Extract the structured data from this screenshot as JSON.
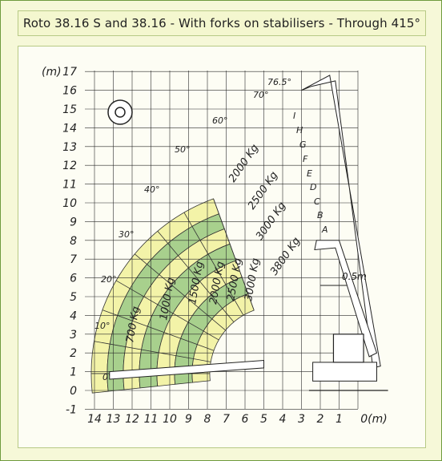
{
  "title": "Roto 38.16 S and 38.16 - With forks on stabilisers - Through 415°",
  "axes": {
    "y_unit": "(m)",
    "x_unit": "0(m)",
    "y_ticks": [
      "17",
      "16",
      "15",
      "14",
      "13",
      "12",
      "11",
      "10",
      "9",
      "8",
      "7",
      "6",
      "5",
      "4",
      "3",
      "2",
      "1",
      "0",
      "-1"
    ],
    "x_ticks": [
      "14",
      "13",
      "12",
      "11",
      "10",
      "9",
      "8",
      "7",
      "6",
      "5",
      "4",
      "3",
      "2",
      "1"
    ]
  },
  "angles": [
    "0°",
    "10°",
    "20°",
    "30°",
    "40°",
    "50°",
    "60°",
    "70°",
    "76.5°"
  ],
  "extensions": [
    "A",
    "B",
    "C",
    "D",
    "E",
    "F",
    "G",
    "H",
    "I"
  ],
  "loads_outer": [
    "700 Kg",
    "1000 Kg",
    "1500 Kg",
    "2000 Kg",
    "2500 Kg",
    "3000 Kg"
  ],
  "loads_inner": [
    "2000 Kg",
    "2500 Kg",
    "3000 Kg",
    "3800 Kg"
  ],
  "offset_label": "0.5m",
  "colors": {
    "green": "#a8d08d",
    "yellow": "#f3f3a8",
    "grid": "#2a2a2a",
    "frame": "#6f9a3e"
  }
}
